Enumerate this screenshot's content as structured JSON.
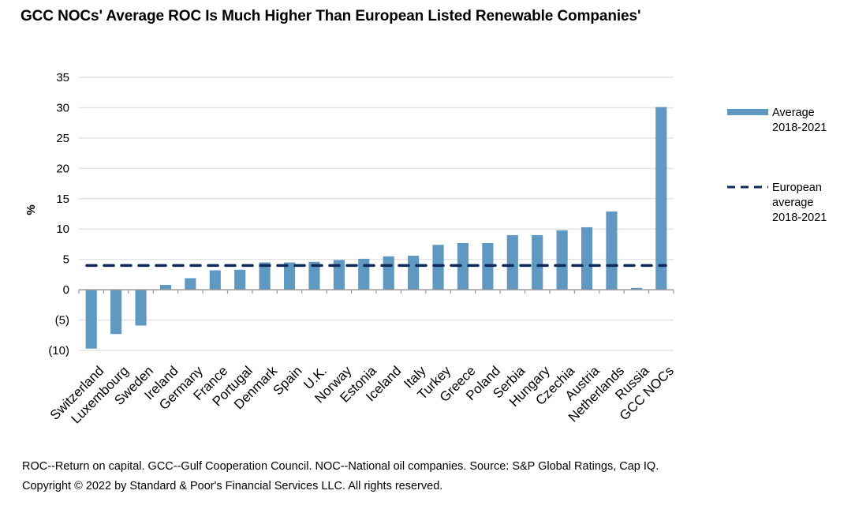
{
  "chart_data": {
    "type": "bar",
    "title": "GCC NOCs' Average ROC Is Much Higher Than European Listed Renewable Companies'",
    "xlabel": "",
    "ylabel": "%",
    "ylim": [
      -10,
      35
    ],
    "yticks": [
      35,
      30,
      25,
      20,
      15,
      10,
      5,
      0,
      -5,
      -10
    ],
    "ytick_labels": [
      "35",
      "30",
      "25",
      "20",
      "15",
      "10",
      "5",
      "0",
      "(5)",
      "(10)"
    ],
    "grid": true,
    "legend_position": "right",
    "categories": [
      "Switzerland",
      "Luxembourg",
      "Sweden",
      "Ireland",
      "Germany",
      "France",
      "Portugal",
      "Denmark",
      "Spain",
      "U.K.",
      "Norway",
      "Estonia",
      "Iceland",
      "Italy",
      "Turkey",
      "Greece",
      "Poland",
      "Serbia",
      "Hungary",
      "Czechia",
      "Austria",
      "Netherlands",
      "Russia",
      "GCC NOCs"
    ],
    "series": [
      {
        "name": "Average 2018-2021",
        "type": "bar",
        "color": "#5f98c0",
        "values": [
          -9.7,
          -7.3,
          -5.9,
          0.8,
          1.9,
          3.2,
          3.3,
          4.5,
          4.5,
          4.6,
          4.9,
          5.1,
          5.5,
          5.6,
          7.4,
          7.7,
          7.7,
          9.0,
          9.0,
          9.8,
          10.3,
          12.9,
          0.3,
          30.1
        ]
      },
      {
        "name": "European average 2018-2021",
        "type": "line",
        "style": "dashed",
        "color": "#0e2a5a",
        "value": 4.0
      }
    ],
    "legend": [
      {
        "line1": "Average",
        "line2": "2018-2021"
      },
      {
        "line1": "European",
        "line2": "average",
        "line3": "2018-2021"
      }
    ]
  },
  "footnotes": {
    "line1": "ROC--Return on capital. GCC--Gulf Cooperation Council. NOC--National oil companies. Source: S&P Global Ratings, Cap IQ.",
    "line2": "Copyright © 2022 by Standard & Poor's Financial Services LLC. All rights reserved."
  }
}
